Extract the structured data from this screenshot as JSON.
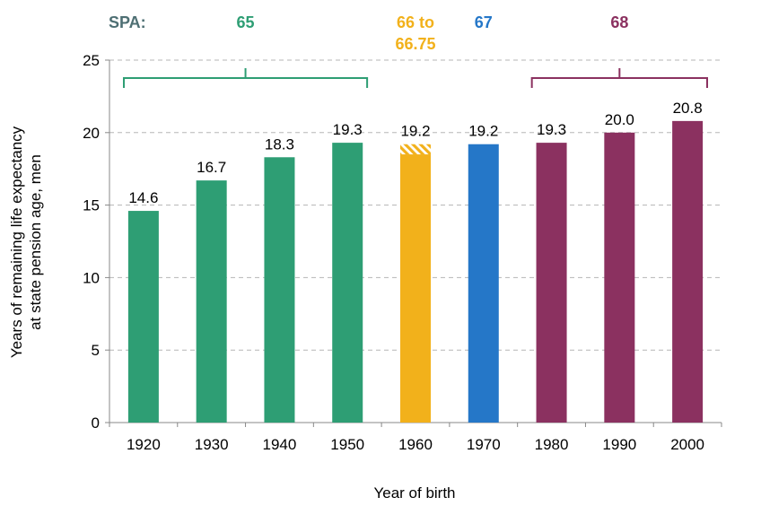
{
  "colors": {
    "green": "#2e9e74",
    "yellow": "#f2b11b",
    "blue": "#2577c8",
    "purple": "#8b3160",
    "spa_prefix": "#4e6f73",
    "grid": "#b5b5b5",
    "axis": "#888888"
  },
  "spa": {
    "prefix": "SPA:",
    "groups": [
      {
        "label": "65",
        "color": "green",
        "bracket_from": "1920",
        "bracket_to": "1950"
      },
      {
        "label": "66 to",
        "label2": "66.75",
        "color": "yellow"
      },
      {
        "label": "67",
        "color": "blue"
      },
      {
        "label": "68",
        "color": "purple",
        "bracket_from": "1980",
        "bracket_to": "2000"
      }
    ]
  },
  "chart_data": {
    "type": "bar",
    "xlabel": "Year of birth",
    "ylabel_line1": "Years of remaining life expectancy",
    "ylabel_line2": "at state pension age, men",
    "ylim": [
      0,
      25
    ],
    "yticks": [
      0,
      5,
      10,
      15,
      20,
      25
    ],
    "grid": true,
    "categories": [
      "1920",
      "1930",
      "1940",
      "1950",
      "1960",
      "1970",
      "1980",
      "1990",
      "2000"
    ],
    "values": [
      14.6,
      16.7,
      18.3,
      19.3,
      19.2,
      19.2,
      19.3,
      20.0,
      20.8
    ],
    "value_labels": [
      "14.6",
      "16.7",
      "18.3",
      "19.3",
      "19.2",
      "19.2",
      "19.3",
      "20.0",
      "20.8"
    ],
    "bar_colors": [
      "green",
      "green",
      "green",
      "green",
      "yellow",
      "blue",
      "purple",
      "purple",
      "purple"
    ],
    "hatched_from": [
      null,
      null,
      null,
      null,
      18.5,
      null,
      null,
      null,
      null
    ]
  }
}
